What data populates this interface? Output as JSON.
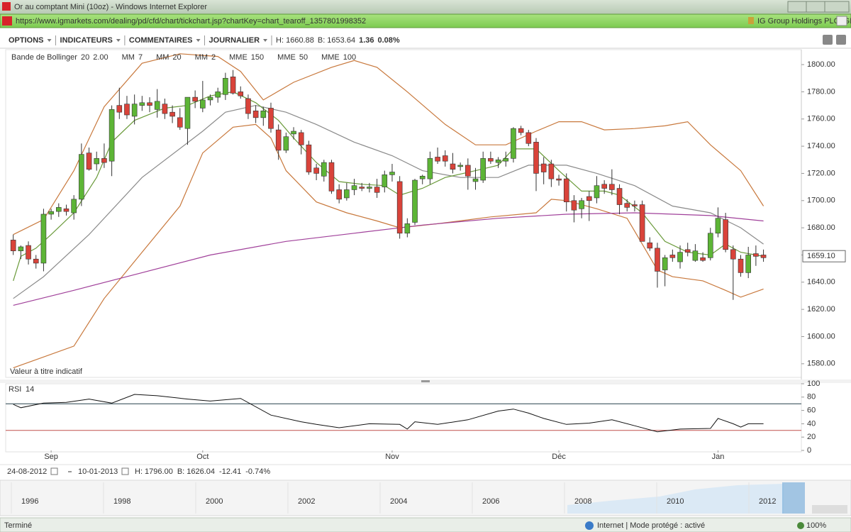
{
  "window": {
    "title": "Or au comptant Mini (10oz) - Windows Internet Explorer",
    "url": "https://www.igmarkets.com/dealing/pd/cfd/chart/tickchart.jsp?chartKey=chart_tearoff_1357801998352",
    "site": "IG Group Holdings PLC [GB]"
  },
  "toolbar": {
    "menus": [
      "OPTIONS",
      "INDICATEURS",
      "COMMENTAIRES",
      "JOURNALIER"
    ],
    "high": "H: 1660.88",
    "low": "B: 1653.64",
    "change": "1.36",
    "change_pct": "0.08%"
  },
  "chart_data": [
    {
      "type": "candlestick",
      "legend": [
        {
          "label": "Bande de Bollinger",
          "params": [
            "20",
            "2.00"
          ],
          "color": "#c8783c"
        },
        {
          "label": "MM",
          "params": [
            "7"
          ],
          "color": "#555555"
        },
        {
          "label": "MM",
          "params": [
            "20"
          ],
          "color": "#555555"
        },
        {
          "label": "MM",
          "params": [
            "2"
          ],
          "color": "#c0392b"
        },
        {
          "label": "MME",
          "params": [
            "150"
          ],
          "color": "#8e3b8e"
        },
        {
          "label": "MME",
          "params": [
            "50"
          ],
          "color": "#2f8fa8"
        },
        {
          "label": "MME",
          "params": [
            "100"
          ],
          "color": "#a0522d"
        }
      ],
      "note": "Valeur à titre indicatif",
      "last_price": {
        "value": 1659.1,
        "label": "1659.10"
      },
      "up_color": "#5db536",
      "down_color": "#d9433a",
      "open": [
        1671,
        1663,
        1667,
        1657,
        1654,
        1690,
        1692,
        1694,
        1691,
        1701,
        1735,
        1727,
        1731,
        1729,
        1770,
        1771,
        1762,
        1770,
        1772,
        1767,
        1771,
        1765,
        1761,
        1753,
        1776,
        1768,
        1774,
        1776,
        1778,
        1791,
        1780,
        1775,
        1766,
        1761,
        1768,
        1752,
        1737,
        1749,
        1750,
        1741,
        1724,
        1718,
        1728,
        1708,
        1702,
        1708,
        1710,
        1709,
        1710,
        1710,
        1719,
        1714,
        1676,
        1684,
        1716,
        1716,
        1732,
        1733,
        1727,
        1725,
        1726,
        1714,
        1715,
        1731,
        1728,
        1729,
        1731,
        1753,
        1750,
        1743,
        1727,
        1727,
        1716,
        1716,
        1700,
        1694,
        1703,
        1702,
        1712,
        1712,
        1709,
        1698,
        1697,
        1697,
        1669,
        1665,
        1649,
        1660,
        1655,
        1664,
        1656,
        1658,
        1658,
        1676,
        1686,
        1664,
        1657,
        1647,
        1661,
        1660
      ],
      "high": [
        1675,
        1667,
        1670,
        1660,
        1694,
        1694,
        1698,
        1697,
        1704,
        1742,
        1739,
        1736,
        1742,
        1770,
        1783,
        1777,
        1778,
        1777,
        1776,
        1782,
        1775,
        1770,
        1768,
        1776,
        1781,
        1788,
        1778,
        1783,
        1794,
        1796,
        1784,
        1778,
        1770,
        1769,
        1772,
        1756,
        1750,
        1754,
        1752,
        1744,
        1727,
        1730,
        1730,
        1712,
        1713,
        1716,
        1713,
        1713,
        1716,
        1722,
        1727,
        1718,
        1687,
        1716,
        1719,
        1736,
        1739,
        1737,
        1735,
        1728,
        1731,
        1724,
        1736,
        1736,
        1732,
        1736,
        1754,
        1755,
        1752,
        1746,
        1732,
        1730,
        1719,
        1720,
        1704,
        1702,
        1707,
        1718,
        1715,
        1723,
        1712,
        1701,
        1700,
        1700,
        1673,
        1669,
        1660,
        1664,
        1667,
        1669,
        1668,
        1662,
        1680,
        1695,
        1691,
        1667,
        1660,
        1666,
        1667,
        1664
      ],
      "low": [
        1660,
        1657,
        1653,
        1650,
        1648,
        1686,
        1688,
        1689,
        1686,
        1696,
        1722,
        1722,
        1724,
        1718,
        1760,
        1760,
        1756,
        1766,
        1765,
        1761,
        1760,
        1757,
        1752,
        1741,
        1768,
        1765,
        1770,
        1772,
        1774,
        1778,
        1775,
        1760,
        1757,
        1755,
        1750,
        1730,
        1735,
        1745,
        1734,
        1719,
        1715,
        1714,
        1705,
        1698,
        1700,
        1704,
        1707,
        1706,
        1702,
        1706,
        1714,
        1672,
        1673,
        1682,
        1712,
        1712,
        1727,
        1725,
        1720,
        1722,
        1708,
        1708,
        1713,
        1727,
        1724,
        1725,
        1728,
        1748,
        1740,
        1707,
        1712,
        1710,
        1711,
        1692,
        1684,
        1687,
        1685,
        1698,
        1705,
        1704,
        1690,
        1692,
        1692,
        1670,
        1663,
        1636,
        1637,
        1655,
        1650,
        1659,
        1655,
        1655,
        1656,
        1673,
        1662,
        1627,
        1644,
        1643,
        1652,
        1655
      ],
      "close": [
        1663,
        1666,
        1657,
        1654,
        1690,
        1692,
        1695,
        1692,
        1701,
        1734,
        1723,
        1731,
        1728,
        1767,
        1765,
        1763,
        1771,
        1772,
        1770,
        1773,
        1764,
        1762,
        1754,
        1776,
        1773,
        1774,
        1776,
        1780,
        1790,
        1779,
        1777,
        1764,
        1761,
        1766,
        1753,
        1737,
        1747,
        1751,
        1741,
        1721,
        1720,
        1728,
        1707,
        1701,
        1708,
        1711,
        1709,
        1710,
        1706,
        1719,
        1721,
        1676,
        1683,
        1715,
        1718,
        1731,
        1729,
        1729,
        1723,
        1726,
        1718,
        1716,
        1731,
        1729,
        1730,
        1731,
        1753,
        1750,
        1742,
        1720,
        1721,
        1716,
        1715,
        1699,
        1693,
        1700,
        1700,
        1711,
        1709,
        1708,
        1697,
        1695,
        1696,
        1670,
        1665,
        1648,
        1658,
        1658,
        1662,
        1662,
        1663,
        1656,
        1676,
        1687,
        1664,
        1657,
        1647,
        1660,
        1659,
        1658
      ],
      "lines": [
        {
          "color": "#c8783c",
          "x": [
            0,
            4,
            8,
            12,
            17,
            22,
            27,
            30,
            33,
            37,
            42,
            45,
            48,
            52,
            57,
            61,
            65,
            69,
            72,
            75,
            78,
            82,
            86,
            89,
            92,
            96,
            99
          ],
          "values": [
            1675,
            1686,
            1722,
            1769,
            1801,
            1808,
            1806,
            1795,
            1774,
            1787,
            1798,
            1803,
            1798,
            1780,
            1756,
            1741,
            1741,
            1751,
            1758,
            1758,
            1752,
            1753,
            1755,
            1758,
            1741,
            1722,
            1696
          ]
        },
        {
          "color": "#c8783c",
          "x": [
            0,
            8,
            12,
            17,
            22,
            25,
            29,
            32,
            34,
            36,
            40,
            44,
            48,
            51,
            56,
            63,
            69,
            71,
            73,
            77,
            81,
            83,
            85,
            87,
            91,
            94,
            96,
            99
          ],
          "values": [
            1577,
            1593,
            1628,
            1662,
            1696,
            1735,
            1754,
            1756,
            1746,
            1722,
            1699,
            1691,
            1685,
            1680,
            1683,
            1688,
            1691,
            1701,
            1700,
            1694,
            1687,
            1668,
            1649,
            1644,
            1641,
            1634,
            1629,
            1635
          ]
        },
        {
          "color": "#8a8a8a",
          "x": [
            0,
            4,
            10,
            17,
            25,
            28,
            32,
            36,
            40,
            45,
            50,
            54,
            59,
            64,
            68,
            73,
            77,
            82,
            87,
            92,
            96,
            99
          ],
          "values": [
            1628,
            1644,
            1675,
            1717,
            1751,
            1765,
            1770,
            1765,
            1756,
            1743,
            1733,
            1722,
            1717,
            1717,
            1726,
            1726,
            1720,
            1711,
            1696,
            1691,
            1680,
            1668
          ]
        },
        {
          "color": "#6a9a3a",
          "x": [
            0,
            1,
            3,
            5,
            8,
            11,
            13,
            16,
            20,
            23,
            26,
            29,
            32,
            35,
            37,
            40,
            43,
            46,
            49,
            51,
            54,
            57,
            61,
            64,
            66,
            69,
            72,
            75,
            78,
            80,
            83,
            86,
            89,
            92,
            94,
            96,
            99
          ],
          "values": [
            1641,
            1659,
            1665,
            1675,
            1691,
            1717,
            1743,
            1759,
            1768,
            1770,
            1777,
            1780,
            1772,
            1759,
            1746,
            1728,
            1714,
            1712,
            1711,
            1704,
            1709,
            1717,
            1722,
            1726,
            1738,
            1738,
            1722,
            1707,
            1707,
            1704,
            1691,
            1670,
            1662,
            1660,
            1668,
            1662,
            1659
          ]
        },
        {
          "color": "#a0409a",
          "x": [
            0,
            8,
            17,
            26,
            36,
            45,
            54,
            64,
            73,
            82,
            92,
            99
          ],
          "values": [
            1623,
            1634,
            1647,
            1660,
            1670,
            1676,
            1682,
            1687,
            1690,
            1691,
            1689,
            1685
          ]
        }
      ],
      "xlim": [
        -1,
        104
      ],
      "ylim": [
        1570,
        1811
      ],
      "yticks": [
        {
          "value": 1580,
          "label": "1580.00"
        },
        {
          "value": 1600,
          "label": "1600.00"
        },
        {
          "value": 1620,
          "label": "1620.00"
        },
        {
          "value": 1640,
          "label": "1640.00"
        },
        {
          "value": 1660,
          "label": "1660.00"
        },
        {
          "value": 1680,
          "label": "1680.00"
        },
        {
          "value": 1700,
          "label": "1700.00"
        },
        {
          "value": 1720,
          "label": "1720.00"
        },
        {
          "value": 1740,
          "label": "1740.00"
        },
        {
          "value": 1760,
          "label": "1760.00"
        },
        {
          "value": 1780,
          "label": "1780.00"
        },
        {
          "value": 1800,
          "label": "1800.00"
        }
      ]
    },
    {
      "type": "line",
      "label": "RSI",
      "period": "14",
      "color": "#111111",
      "x": [
        0,
        1,
        4,
        7,
        10,
        13,
        16,
        19,
        23,
        26,
        30,
        34,
        38,
        40,
        43,
        47,
        51,
        52,
        53,
        56,
        60,
        64,
        66,
        68,
        70,
        73,
        76,
        79,
        82,
        85,
        88,
        92,
        93,
        95,
        96,
        97,
        99
      ],
      "values": [
        69,
        64,
        71,
        72,
        77,
        71,
        84,
        82,
        77,
        74,
        78,
        53,
        43,
        39,
        34,
        40,
        39,
        32,
        43,
        39,
        46,
        59,
        62,
        56,
        48,
        39,
        41,
        46,
        37,
        28,
        32,
        33,
        48,
        40,
        35,
        40,
        40
      ],
      "levels": [
        {
          "value": 70,
          "color": "#26404a"
        },
        {
          "value": 30,
          "color": "#c0504d"
        }
      ],
      "xlim": [
        -1,
        104
      ],
      "ylim": [
        0,
        100
      ],
      "yticks": [
        0,
        20,
        40,
        60,
        80,
        100
      ],
      "xticks": [
        {
          "value": 5,
          "label": "Sep"
        },
        {
          "value": 25,
          "label": "Oct"
        },
        {
          "value": 50,
          "label": "Nov"
        },
        {
          "value": 72,
          "label": "Déc"
        },
        {
          "value": 93,
          "label": "Jan"
        }
      ]
    }
  ],
  "range_bar": {
    "from": "24-08-2012",
    "to": "10-01-2013",
    "high": "H: 1796.00",
    "low": "B: 1626.04",
    "change": "-12.41",
    "change_pct": "-0.74%"
  },
  "navigator": {
    "years": [
      "1996",
      "1998",
      "2000",
      "2002",
      "2004",
      "2006",
      "2008",
      "2010",
      "2012"
    ]
  },
  "status": {
    "left": "Terminé",
    "zone": "Internet | Mode protégé : activé",
    "zoom": "100%"
  }
}
